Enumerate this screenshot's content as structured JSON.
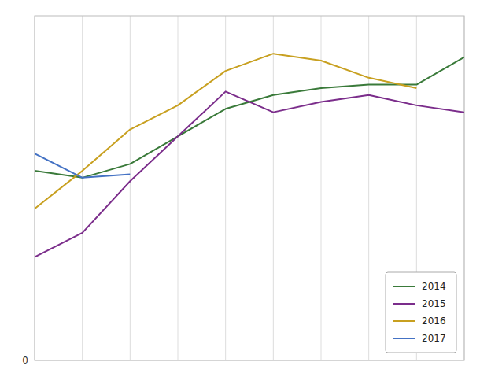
{
  "chart_data": {
    "type": "line",
    "x": [
      1,
      2,
      3,
      4,
      5,
      6,
      7,
      8,
      9,
      10
    ],
    "series": [
      {
        "name": "2014",
        "color": "#3a7a3a",
        "values": [
          55,
          53,
          57,
          65,
          73,
          77,
          79,
          80,
          80,
          88
        ]
      },
      {
        "name": "2015",
        "color": "#7b2d8b",
        "values": [
          30,
          37,
          52,
          65,
          78,
          72,
          75,
          77,
          74,
          72
        ]
      },
      {
        "name": "2016",
        "color": "#c8a020",
        "values": [
          44,
          55,
          67,
          74,
          84,
          89,
          87,
          82,
          79,
          null
        ]
      },
      {
        "name": "2017",
        "color": "#4472c4",
        "values": [
          60,
          53,
          54,
          null,
          null,
          null,
          null,
          null,
          null,
          null
        ]
      }
    ],
    "xlim": [
      1,
      10
    ],
    "ylim": [
      0,
      100
    ],
    "xticks": [
      1,
      2,
      3,
      4,
      5,
      6,
      7,
      8,
      9,
      10
    ],
    "yticks": [
      0
    ],
    "grid": true,
    "legend": "lower right",
    "tick_labels": "y"
  }
}
